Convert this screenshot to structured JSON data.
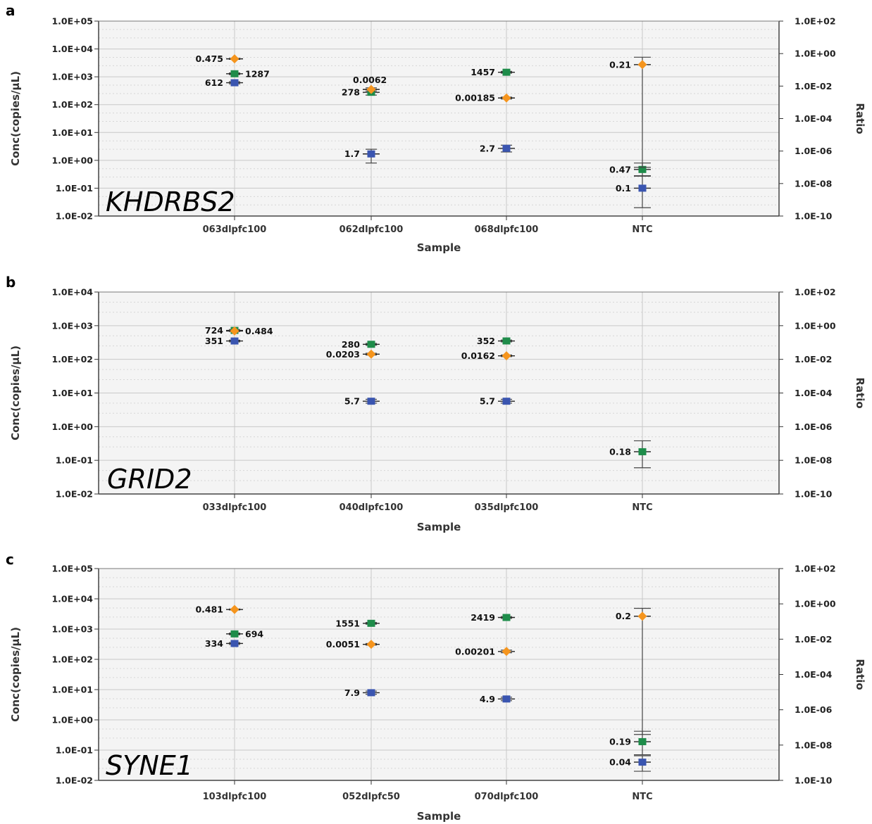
{
  "colors": {
    "concentration_a": "#3a55b0",
    "concentration_b": "#1e8c4a",
    "ratio": "#f5951e",
    "plot_bg": "#f4f4f4",
    "grid": "#c8c8c8"
  },
  "chart_data": [
    {
      "panel": "a",
      "gene": "KHDRBS2",
      "type": "scatter",
      "xlabel": "Sample",
      "ylabel_left": "Conc(copies/µL)",
      "ylabel_right": "Ratio",
      "categories": [
        "063dlpfc100",
        "062dlpfc100",
        "068dlpfc100",
        "NTC"
      ],
      "yticks_left": [
        "1.0E+05",
        "1.0E+04",
        "1.0E+03",
        "1.0E+02",
        "1.0E+01",
        "1.0E+00",
        "1.0E-01",
        "1.0E-02"
      ],
      "yticks_right": [
        "1.0E+02",
        "1.0E+00",
        "1.0E-02",
        "1.0E-04",
        "1.0E-06",
        "1.0E-08",
        "1.0E-10"
      ],
      "ylim_left": [
        0.01,
        100000
      ],
      "ylim_right": [
        1e-10,
        100
      ],
      "grid": true,
      "points": [
        {
          "cat": 0,
          "axis": "left",
          "series": "conc_a",
          "value": 612,
          "label": "612",
          "side": "left",
          "err": [
            560,
            670
          ]
        },
        {
          "cat": 0,
          "axis": "left",
          "series": "conc_b",
          "value": 1287,
          "label": "1287",
          "side": "right",
          "err": [
            1200,
            1380
          ]
        },
        {
          "cat": 0,
          "axis": "right",
          "series": "ratio",
          "value": 0.475,
          "label": "0.475",
          "side": "left",
          "err": [
            0.44,
            0.51
          ]
        },
        {
          "cat": 1,
          "axis": "left",
          "series": "conc_a",
          "value": 1.7,
          "label": "1.7",
          "side": "left",
          "err": [
            0.8,
            2.5
          ]
        },
        {
          "cat": 1,
          "axis": "left",
          "series": "conc_b",
          "value": 278,
          "label": "278",
          "side": "left",
          "err": [
            220,
            360
          ]
        },
        {
          "cat": 1,
          "axis": "right",
          "series": "ratio",
          "value": 0.0062,
          "label": "0.0062",
          "side": "right",
          "err": [
            0.005,
            0.0078
          ]
        },
        {
          "cat": 2,
          "axis": "left",
          "series": "conc_a",
          "value": 2.7,
          "label": "2.7",
          "side": "left",
          "err": [
            2.0,
            3.5
          ]
        },
        {
          "cat": 2,
          "axis": "left",
          "series": "conc_b",
          "value": 1457,
          "label": "1457",
          "side": "left",
          "err": [
            1350,
            1570
          ]
        },
        {
          "cat": 2,
          "axis": "right",
          "series": "ratio",
          "value": 0.00185,
          "label": "0.00185",
          "side": "left",
          "err": [
            0.0016,
            0.0021
          ]
        },
        {
          "cat": 3,
          "axis": "left",
          "series": "conc_a",
          "value": 0.1,
          "label": "0.1",
          "side": "left",
          "err": [
            0.02,
            0.28
          ]
        },
        {
          "cat": 3,
          "axis": "left",
          "series": "conc_b",
          "value": 0.47,
          "label": "0.47",
          "side": "left",
          "err": [
            0.27,
            0.8
          ]
        },
        {
          "cat": 3,
          "axis": "right",
          "series": "ratio",
          "value": 0.21,
          "label": "0.21",
          "side": "left",
          "err": [
            1e-07,
            0.6
          ]
        }
      ]
    },
    {
      "panel": "b",
      "gene": "GRID2",
      "type": "scatter",
      "xlabel": "Sample",
      "ylabel_left": "Conc(copies/µL)",
      "ylabel_right": "Ratio",
      "categories": [
        "033dlpfc100",
        "040dlpfc100",
        "035dlpfc100",
        "NTC"
      ],
      "yticks_left": [
        "1.0E+04",
        "1.0E+03",
        "1.0E+02",
        "1.0E+01",
        "1.0E+00",
        "1.0E-01",
        "1.0E-02"
      ],
      "yticks_right": [
        "1.0E+02",
        "1.0E+00",
        "1.0E-02",
        "1.0E-04",
        "1.0E-06",
        "1.0E-08",
        "1.0E-10"
      ],
      "ylim_left": [
        0.01,
        10000
      ],
      "ylim_right": [
        1e-10,
        100
      ],
      "grid": true,
      "points": [
        {
          "cat": 0,
          "axis": "left",
          "series": "conc_a",
          "value": 351,
          "label": "351",
          "side": "left",
          "err": [
            330,
            372
          ]
        },
        {
          "cat": 0,
          "axis": "left",
          "series": "conc_b",
          "value": 724,
          "label": "724",
          "side": "left",
          "err": [
            680,
            770
          ]
        },
        {
          "cat": 0,
          "axis": "right",
          "series": "ratio",
          "value": 0.484,
          "label": "0.484",
          "side": "right",
          "err": [
            0.45,
            0.52
          ]
        },
        {
          "cat": 1,
          "axis": "left",
          "series": "conc_a",
          "value": 5.7,
          "label": "5.7",
          "side": "left",
          "err": [
            5.0,
            6.5
          ]
        },
        {
          "cat": 1,
          "axis": "left",
          "series": "conc_b",
          "value": 280,
          "label": "280",
          "side": "left",
          "err": [
            262,
            298
          ]
        },
        {
          "cat": 1,
          "axis": "right",
          "series": "ratio",
          "value": 0.0203,
          "label": "0.0203",
          "side": "left",
          "err": [
            0.018,
            0.023
          ]
        },
        {
          "cat": 2,
          "axis": "left",
          "series": "conc_a",
          "value": 5.7,
          "label": "5.7",
          "side": "left",
          "err": [
            5.0,
            6.5
          ]
        },
        {
          "cat": 2,
          "axis": "left",
          "series": "conc_b",
          "value": 352,
          "label": "352",
          "side": "left",
          "err": [
            330,
            375
          ]
        },
        {
          "cat": 2,
          "axis": "right",
          "series": "ratio",
          "value": 0.0162,
          "label": "0.0162",
          "side": "left",
          "err": [
            0.0145,
            0.0182
          ]
        },
        {
          "cat": 3,
          "axis": "left",
          "series": "conc_b",
          "value": 0.18,
          "label": "0.18",
          "side": "left",
          "err": [
            0.06,
            0.38
          ]
        }
      ]
    },
    {
      "panel": "c",
      "gene": "SYNE1",
      "type": "scatter",
      "xlabel": "Sample",
      "ylabel_left": "Conc(copies/µL)",
      "ylabel_right": "Ratio",
      "categories": [
        "103dlpfc100",
        "052dlpfc50",
        "070dlpfc100",
        "NTC"
      ],
      "yticks_left": [
        "1.0E+05",
        "1.0E+04",
        "1.0E+03",
        "1.0E+02",
        "1.0E+01",
        "1.0E+00",
        "1.0E-01",
        "1.0E-02"
      ],
      "yticks_right": [
        "1.0E+02",
        "1.0E+00",
        "1.0E-02",
        "1.0E-04",
        "1.0E-06",
        "1.0E-08",
        "1.0E-10"
      ],
      "ylim_left": [
        0.01,
        100000
      ],
      "ylim_right": [
        1e-10,
        100
      ],
      "grid": true,
      "points": [
        {
          "cat": 0,
          "axis": "left",
          "series": "conc_a",
          "value": 334,
          "label": "334",
          "side": "left",
          "err": [
            310,
            360
          ]
        },
        {
          "cat": 0,
          "axis": "left",
          "series": "conc_b",
          "value": 694,
          "label": "694",
          "side": "right",
          "err": [
            650,
            740
          ]
        },
        {
          "cat": 0,
          "axis": "right",
          "series": "ratio",
          "value": 0.481,
          "label": "0.481",
          "side": "left",
          "err": [
            0.45,
            0.51
          ]
        },
        {
          "cat": 1,
          "axis": "left",
          "series": "conc_a",
          "value": 7.9,
          "label": "7.9",
          "side": "left",
          "err": [
            7.0,
            8.9
          ]
        },
        {
          "cat": 1,
          "axis": "left",
          "series": "conc_b",
          "value": 1551,
          "label": "1551",
          "side": "left",
          "err": [
            1450,
            1660
          ]
        },
        {
          "cat": 1,
          "axis": "right",
          "series": "ratio",
          "value": 0.0051,
          "label": "0.0051",
          "side": "left",
          "err": [
            0.0046,
            0.0057
          ]
        },
        {
          "cat": 2,
          "axis": "left",
          "series": "conc_a",
          "value": 4.9,
          "label": "4.9",
          "side": "left",
          "err": [
            4.3,
            5.6
          ]
        },
        {
          "cat": 2,
          "axis": "left",
          "series": "conc_b",
          "value": 2419,
          "label": "2419",
          "side": "left",
          "err": [
            2250,
            2600
          ]
        },
        {
          "cat": 2,
          "axis": "right",
          "series": "ratio",
          "value": 0.00201,
          "label": "0.00201",
          "side": "left",
          "err": [
            0.0017,
            0.0024
          ]
        },
        {
          "cat": 3,
          "axis": "left",
          "series": "conc_a",
          "value": 0.04,
          "label": "0.04",
          "side": "left",
          "err": [
            0.02,
            0.065
          ]
        },
        {
          "cat": 3,
          "axis": "left",
          "series": "conc_b",
          "value": 0.19,
          "label": "0.19",
          "side": "left",
          "err": [
            0.07,
            0.42
          ]
        },
        {
          "cat": 3,
          "axis": "right",
          "series": "ratio",
          "value": 0.2,
          "label": "0.2",
          "side": "left",
          "err": [
            4e-08,
            0.56
          ]
        }
      ]
    }
  ]
}
